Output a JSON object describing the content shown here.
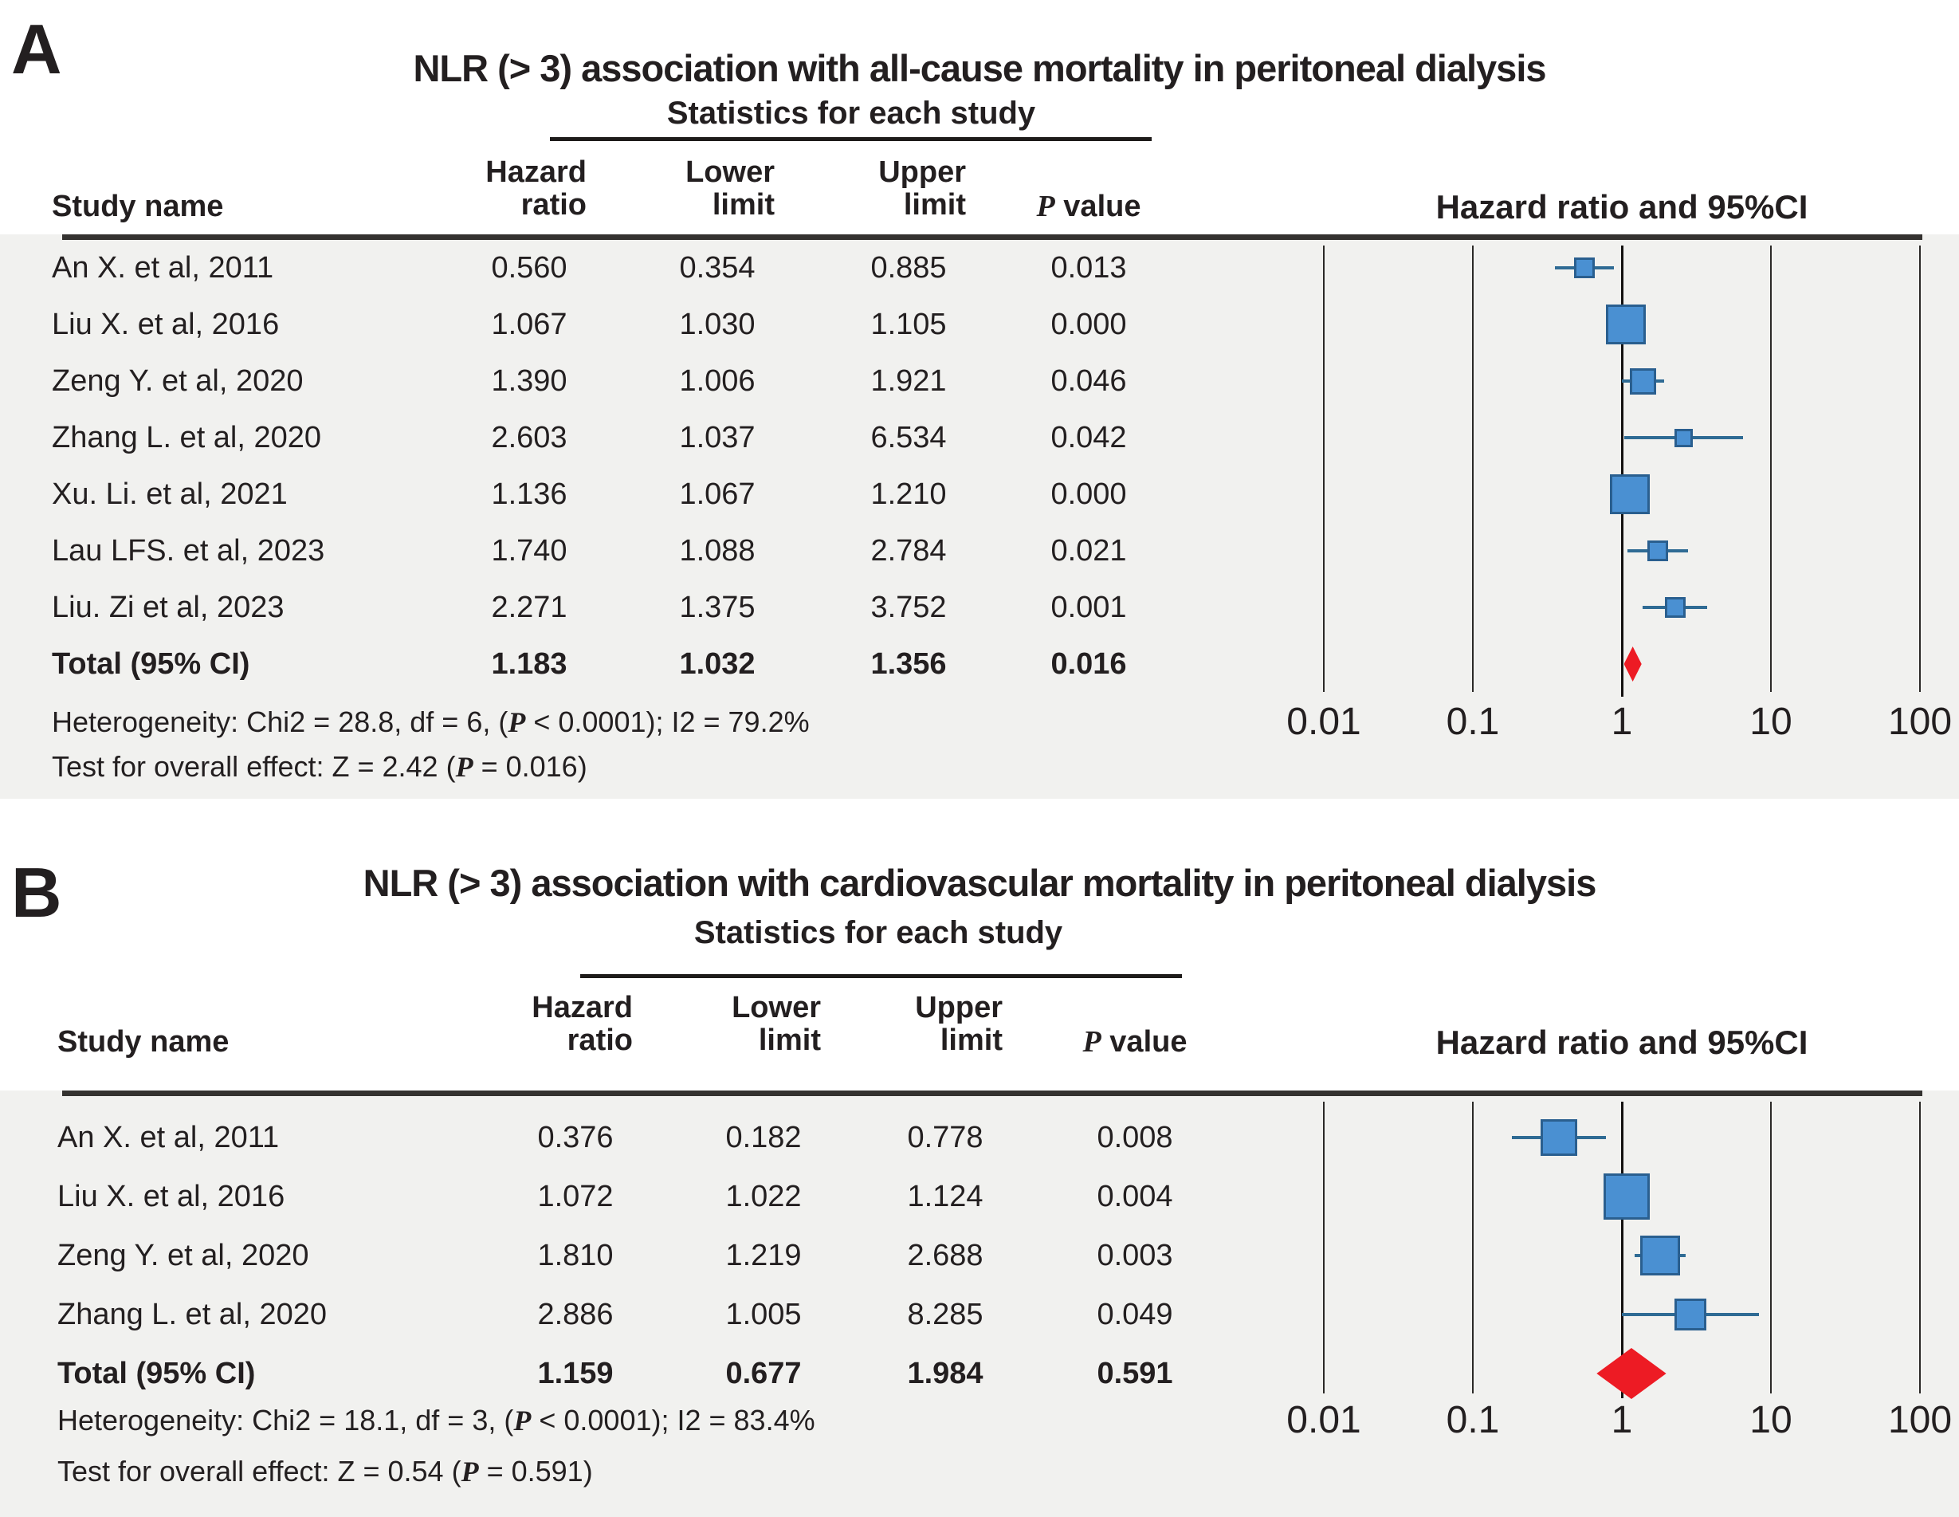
{
  "figure": {
    "background": "#ffffff",
    "kind": "meta-analysis forest plots, two panels"
  },
  "colors": {
    "marker_fill": "#4a90d2",
    "marker_border": "#2a5f8f",
    "whisker": "#2f6b94",
    "diamond": "#ed1b24",
    "panel_background": "#f1f1ef",
    "border_line": "#343230",
    "grid_line": "#2b2927",
    "reference_line": "#131110",
    "text": "#231f20"
  },
  "chart_data": [
    {
      "type": "scatter",
      "variant": "forest-plot",
      "panel_label": "A",
      "title": "NLR (> 3) association with all-cause mortality in peritoneal dialysis",
      "subtitle": "Statistics for each study",
      "plot_title": "Hazard ratio and 95%CI",
      "study_header": "Study name",
      "stat_headers": [
        [
          "Hazard",
          "ratio"
        ],
        [
          "Lower",
          "limit"
        ],
        [
          "Upper",
          "limit"
        ]
      ],
      "p_symbol": "P",
      "p_header_suffix": " value",
      "x_scale": "log10",
      "x_range": [
        0.01,
        100
      ],
      "reference_value": 1,
      "x_ticks": [
        "0.01",
        "0.1",
        "1",
        "10",
        "100"
      ],
      "legend_position": "none",
      "grid": "vertical-decades",
      "studies": [
        {
          "name": "An X. et al, 2011",
          "hazard_ratio": "0.560",
          "lower_limit": "0.354",
          "upper_limit": "0.885",
          "p_value": "0.013",
          "marker_size": 26
        },
        {
          "name": "Liu X. et al, 2016",
          "hazard_ratio": "1.067",
          "lower_limit": "1.030",
          "upper_limit": "1.105",
          "p_value": "0.000",
          "marker_size": 50
        },
        {
          "name": "Zeng Y. et al, 2020",
          "hazard_ratio": "1.390",
          "lower_limit": "1.006",
          "upper_limit": "1.921",
          "p_value": "0.046",
          "marker_size": 33
        },
        {
          "name": "Zhang L. et al, 2020",
          "hazard_ratio": "2.603",
          "lower_limit": "1.037",
          "upper_limit": "6.534",
          "p_value": "0.042",
          "marker_size": 23
        },
        {
          "name": "Xu. Li. et al, 2021",
          "hazard_ratio": "1.136",
          "lower_limit": "1.067",
          "upper_limit": "1.210",
          "p_value": "0.000",
          "marker_size": 50
        },
        {
          "name": "Lau LFS. et al, 2023",
          "hazard_ratio": "1.740",
          "lower_limit": "1.088",
          "upper_limit": "2.784",
          "p_value": "0.021",
          "marker_size": 26
        },
        {
          "name": "Liu. Zi et al, 2023",
          "hazard_ratio": "2.271",
          "lower_limit": "1.375",
          "upper_limit": "3.752",
          "p_value": "0.001",
          "marker_size": 26
        }
      ],
      "total": {
        "name": "Total (95% CI)",
        "hazard_ratio": "1.183",
        "lower_limit": "1.032",
        "upper_limit": "1.356",
        "p_value": "0.016"
      },
      "heterogeneity": {
        "pre": "Heterogeneity: Chi2 = 28.8, df = 6, (",
        "post": " < 0.0001); I2 = 79.2%"
      },
      "overall_effect": {
        "pre": "Test for overall effect: Z = 2.42 (",
        "post": " = 0.016)"
      }
    },
    {
      "type": "scatter",
      "variant": "forest-plot",
      "panel_label": "B",
      "title": "NLR (> 3) association with cardiovascular mortality in peritoneal dialysis",
      "subtitle": "Statistics for each study",
      "plot_title": "Hazard ratio and 95%CI",
      "study_header": "Study name",
      "stat_headers": [
        [
          "Hazard",
          "ratio"
        ],
        [
          "Lower",
          "limit"
        ],
        [
          "Upper",
          "limit"
        ]
      ],
      "p_symbol": "P",
      "p_header_suffix": " value",
      "x_scale": "log10",
      "x_range": [
        0.01,
        100
      ],
      "reference_value": 1,
      "x_ticks": [
        "0.01",
        "0.1",
        "1",
        "10",
        "100"
      ],
      "legend_position": "none",
      "grid": "vertical-decades",
      "studies": [
        {
          "name": "An X. et al, 2011",
          "hazard_ratio": "0.376",
          "lower_limit": "0.182",
          "upper_limit": "0.778",
          "p_value": "0.008",
          "marker_size": 46
        },
        {
          "name": "Liu X. et al, 2016",
          "hazard_ratio": "1.072",
          "lower_limit": "1.022",
          "upper_limit": "1.124",
          "p_value": "0.004",
          "marker_size": 58
        },
        {
          "name": "Zeng Y. et al, 2020",
          "hazard_ratio": "1.810",
          "lower_limit": "1.219",
          "upper_limit": "2.688",
          "p_value": "0.003",
          "marker_size": 50
        },
        {
          "name": "Zhang L. et al, 2020",
          "hazard_ratio": "2.886",
          "lower_limit": "1.005",
          "upper_limit": "8.285",
          "p_value": "0.049",
          "marker_size": 40
        }
      ],
      "total": {
        "name": "Total (95% CI)",
        "hazard_ratio": "1.159",
        "lower_limit": "0.677",
        "upper_limit": "1.984",
        "p_value": "0.591"
      },
      "heterogeneity": {
        "pre": "Heterogeneity: Chi2 = 18.1, df = 3, (",
        "post": " < 0.0001); I2 = 83.4%"
      },
      "overall_effect": {
        "pre": "Test for overall effect: Z = 0.54 (",
        "post": " = 0.591)"
      }
    }
  ]
}
